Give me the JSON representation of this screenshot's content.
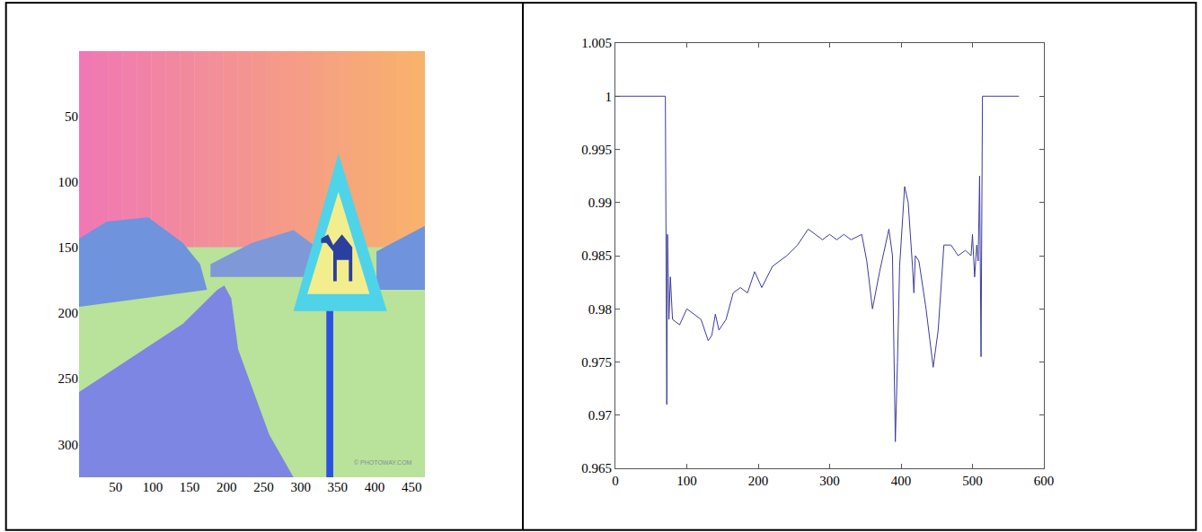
{
  "chart_data": [
    {
      "type": "image",
      "xlim": [
        0.5,
        468
      ],
      "ylim": [
        325,
        0.5
      ],
      "xticks": [
        50,
        100,
        150,
        200,
        250,
        300,
        350,
        400,
        450
      ],
      "yticks": [
        50,
        100,
        150,
        200,
        250,
        300
      ],
      "annotations": [
        "© PHOTOWAY.COM"
      ]
    },
    {
      "type": "line",
      "x": [
        0,
        70,
        72,
        73,
        75,
        77,
        80,
        90,
        100,
        110,
        120,
        130,
        135,
        140,
        145,
        155,
        165,
        175,
        185,
        195,
        205,
        220,
        240,
        255,
        270,
        290,
        300,
        310,
        320,
        330,
        345,
        352,
        360,
        370,
        383,
        388,
        392,
        395,
        398,
        405,
        410,
        416,
        418,
        420,
        425,
        435,
        445,
        452,
        460,
        470,
        480,
        490,
        498,
        500,
        503,
        506,
        508,
        510,
        512,
        514,
        565
      ],
      "values": [
        1,
        1,
        0.971,
        0.987,
        0.979,
        0.983,
        0.979,
        0.9785,
        0.98,
        0.9795,
        0.979,
        0.977,
        0.9775,
        0.9795,
        0.978,
        0.979,
        0.9815,
        0.982,
        0.9815,
        0.9835,
        0.982,
        0.984,
        0.985,
        0.986,
        0.9875,
        0.9865,
        0.987,
        0.9865,
        0.987,
        0.9865,
        0.987,
        0.9845,
        0.98,
        0.9835,
        0.9875,
        0.985,
        0.9675,
        0.975,
        0.984,
        0.9915,
        0.99,
        0.984,
        0.9815,
        0.985,
        0.9845,
        0.98,
        0.9745,
        0.978,
        0.986,
        0.986,
        0.985,
        0.9855,
        0.985,
        0.987,
        0.983,
        0.986,
        0.9845,
        0.9925,
        0.9755,
        1,
        1
      ],
      "color": "#3b3b9e",
      "xlim": [
        0,
        600
      ],
      "ylim": [
        0.965,
        1.005
      ],
      "xticks": [
        0,
        100,
        200,
        300,
        400,
        500,
        600
      ],
      "yticks": [
        0.965,
        0.97,
        0.975,
        0.98,
        0.985,
        0.99,
        0.995,
        1,
        1.005
      ]
    }
  ]
}
